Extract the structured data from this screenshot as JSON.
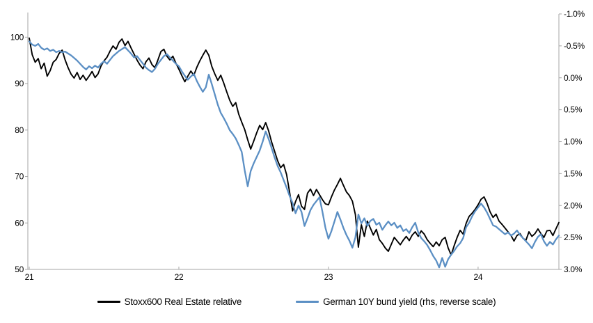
{
  "page": {
    "background": "#ffffff",
    "title": ""
  },
  "chart_data": {
    "type": "line",
    "title": "",
    "xlabel": "",
    "ylabel_left": "",
    "ylabel_right": "",
    "grid": false,
    "legend_position": "bottom",
    "axis_color": "#a6a6a6",
    "label_color": "#000000",
    "x_axis": {
      "min": 21.0,
      "max": 24.54,
      "ticks": [
        21,
        22,
        23,
        24
      ],
      "tick_labels": [
        "21",
        "22",
        "23",
        "24"
      ]
    },
    "left_axis": {
      "min": 50,
      "max": 105,
      "reversed": false,
      "ticks": [
        100,
        90,
        80,
        70,
        60,
        50
      ],
      "tick_labels": [
        "100",
        "90",
        "80",
        "70",
        "60",
        "50"
      ]
    },
    "right_axis": {
      "min": -1.0,
      "max": 3.0,
      "reversed": true,
      "ticks": [
        -1.0,
        -0.5,
        0.0,
        0.5,
        1.0,
        1.5,
        2.0,
        2.5,
        3.0
      ],
      "tick_labels": [
        "-1.0%",
        "-0.5%",
        "0.0%",
        "0.5%",
        "1.0%",
        "1.5%",
        "2.0%",
        "2.5%",
        "3.0%"
      ]
    },
    "series": [
      {
        "name": "Stoxx600 Real Estate relative",
        "color": "#000000",
        "width": 1.9,
        "axis": "left",
        "x_start": 21.0,
        "x_step": 0.02,
        "values": [
          99.8,
          96.2,
          94.6,
          95.4,
          93.2,
          94.4,
          91.6,
          92.8,
          94.6,
          95.2,
          96.5,
          97.2,
          95.1,
          93.4,
          92.0,
          91.2,
          92.4,
          90.9,
          91.8,
          90.7,
          91.6,
          92.6,
          91.3,
          92.1,
          93.8,
          94.9,
          95.7,
          97.0,
          98.1,
          97.4,
          98.9,
          99.6,
          98.2,
          99.1,
          97.7,
          96.4,
          95.1,
          94.0,
          93.2,
          94.7,
          95.5,
          94.1,
          93.4,
          95.1,
          96.9,
          97.4,
          95.9,
          95.1,
          95.9,
          94.4,
          93.1,
          91.7,
          90.4,
          91.6,
          92.7,
          91.8,
          93.5,
          94.9,
          96.1,
          97.2,
          96.1,
          93.7,
          92.1,
          90.7,
          91.8,
          90.1,
          88.2,
          86.4,
          85.1,
          85.9,
          83.4,
          81.7,
          80.1,
          77.9,
          75.9,
          77.6,
          79.4,
          81.0,
          80.1,
          81.6,
          79.8,
          77.4,
          75.4,
          73.4,
          71.9,
          72.6,
          70.4,
          66.6,
          62.6,
          64.6,
          66.1,
          63.6,
          62.9,
          66.4,
          67.3,
          65.9,
          67.2,
          66.1,
          65.0,
          64.1,
          63.9,
          65.6,
          67.1,
          68.3,
          69.6,
          68.1,
          66.7,
          65.9,
          64.7,
          61.8,
          54.8,
          59.6,
          57.1,
          60.4,
          58.9,
          57.4,
          58.6,
          56.4,
          55.6,
          54.6,
          53.9,
          55.4,
          56.9,
          56.1,
          55.3,
          56.3,
          57.1,
          56.2,
          57.4,
          58.1,
          57.1,
          58.3,
          57.6,
          56.4,
          55.6,
          54.9,
          55.9,
          55.1,
          56.4,
          56.9,
          54.6,
          53.1,
          55.1,
          56.9,
          58.4,
          57.6,
          59.9,
          61.4,
          62.1,
          62.9,
          63.9,
          65.1,
          65.6,
          64.2,
          62.4,
          61.2,
          61.9,
          60.4,
          59.7,
          58.9,
          58.1,
          57.3,
          56.1,
          57.3,
          57.7,
          56.7,
          56.3,
          58.1,
          57.1,
          57.7,
          58.7,
          57.7,
          56.9,
          58.3,
          58.4,
          57.3,
          58.7,
          60.1
        ]
      },
      {
        "name": "German 10Y bund yield (rhs, reverse scale)",
        "color": "#5b8fc4",
        "width": 2.3,
        "axis": "right",
        "x_start": 21.0,
        "x_step": 0.02,
        "values": [
          -0.57,
          -0.52,
          -0.5,
          -0.53,
          -0.47,
          -0.44,
          -0.46,
          -0.42,
          -0.44,
          -0.4,
          -0.42,
          -0.4,
          -0.41,
          -0.38,
          -0.35,
          -0.31,
          -0.27,
          -0.22,
          -0.17,
          -0.13,
          -0.18,
          -0.15,
          -0.19,
          -0.16,
          -0.22,
          -0.26,
          -0.22,
          -0.28,
          -0.34,
          -0.38,
          -0.42,
          -0.45,
          -0.48,
          -0.43,
          -0.38,
          -0.32,
          -0.34,
          -0.28,
          -0.22,
          -0.16,
          -0.12,
          -0.09,
          -0.14,
          -0.22,
          -0.28,
          -0.34,
          -0.37,
          -0.32,
          -0.27,
          -0.22,
          -0.18,
          -0.1,
          -0.03,
          0.03,
          -0.02,
          -0.06,
          0.05,
          0.14,
          0.22,
          0.15,
          -0.05,
          0.1,
          0.26,
          0.42,
          0.55,
          0.63,
          0.72,
          0.82,
          0.88,
          0.95,
          1.05,
          1.16,
          1.45,
          1.7,
          1.46,
          1.34,
          1.24,
          1.14,
          1.0,
          0.84,
          0.96,
          1.1,
          1.25,
          1.38,
          1.48,
          1.6,
          1.72,
          1.85,
          1.96,
          2.12,
          2.0,
          2.1,
          2.32,
          2.2,
          2.07,
          1.99,
          1.93,
          1.87,
          2.1,
          2.35,
          2.52,
          2.4,
          2.25,
          2.1,
          2.22,
          2.35,
          2.46,
          2.55,
          2.66,
          2.5,
          2.14,
          2.28,
          2.2,
          2.32,
          2.24,
          2.21,
          2.3,
          2.27,
          2.38,
          2.31,
          2.25,
          2.31,
          2.27,
          2.35,
          2.31,
          2.4,
          2.37,
          2.43,
          2.34,
          2.27,
          2.42,
          2.51,
          2.56,
          2.62,
          2.7,
          2.79,
          2.86,
          2.97,
          2.82,
          2.96,
          2.84,
          2.77,
          2.71,
          2.64,
          2.59,
          2.51,
          2.34,
          2.27,
          2.17,
          2.09,
          2.03,
          1.97,
          2.03,
          2.11,
          2.21,
          2.31,
          2.33,
          2.37,
          2.41,
          2.45,
          2.42,
          2.47,
          2.44,
          2.39,
          2.46,
          2.51,
          2.56,
          2.61,
          2.67,
          2.57,
          2.49,
          2.45,
          2.56,
          2.63,
          2.57,
          2.61,
          2.53,
          2.47
        ]
      }
    ]
  }
}
